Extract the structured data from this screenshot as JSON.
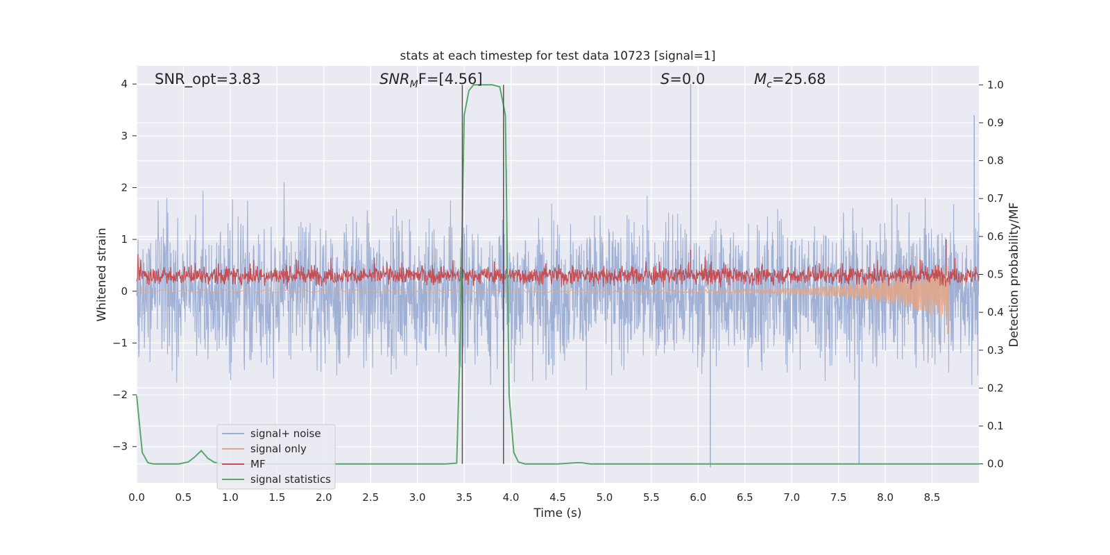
{
  "chart_data": {
    "type": "line",
    "title": "stats at each timestep for test data 10723 [signal=1]",
    "xlabel": "Time (s)",
    "ylabel": "Whitened strain",
    "ylabel_right": "Detection probability/MF",
    "xlim": [
      0.0,
      9.0
    ],
    "ylim": [
      -3.7,
      4.35
    ],
    "ylim_right": [
      -0.05,
      1.05
    ],
    "xticks": [
      "0.0",
      "0.5",
      "1.0",
      "1.5",
      "2.0",
      "2.5",
      "3.0",
      "3.5",
      "4.0",
      "4.5",
      "5.0",
      "5.5",
      "6.0",
      "6.5",
      "7.0",
      "7.5",
      "8.0",
      "8.5"
    ],
    "xtick_values": [
      0.0,
      0.5,
      1.0,
      1.5,
      2.0,
      2.5,
      3.0,
      3.5,
      4.0,
      4.5,
      5.0,
      5.5,
      6.0,
      6.5,
      7.0,
      7.5,
      8.0,
      8.5
    ],
    "yticks_left": [
      "−3",
      "−2",
      "−1",
      "0",
      "1",
      "2",
      "3",
      "4"
    ],
    "ytick_values_left": [
      -3,
      -2,
      -1,
      0,
      1,
      2,
      3,
      4
    ],
    "yticks_right": [
      "0.0",
      "0.1",
      "0.2",
      "0.3",
      "0.4",
      "0.5",
      "0.6",
      "0.7",
      "0.8",
      "0.9",
      "1.0"
    ],
    "ytick_values_right": [
      0.0,
      0.1,
      0.2,
      0.3,
      0.4,
      0.5,
      0.6,
      0.7,
      0.8,
      0.9,
      1.0
    ],
    "grid": true,
    "legend_position": "lower-left",
    "series": [
      {
        "name": "signal+ noise",
        "axis": "left",
        "color": "#9badd2",
        "style": "dense noise",
        "approx_envelope": [
          -3.4,
          4.0
        ],
        "typical_band": [
          -1.2,
          1.4
        ],
        "notable_peaks": [
          {
            "x": 5.92,
            "y": 4.0
          },
          {
            "x": 8.95,
            "y": 3.4
          },
          {
            "x": 6.13,
            "y": -3.4
          },
          {
            "x": 7.72,
            "y": -3.35
          }
        ]
      },
      {
        "name": "signal only",
        "axis": "left",
        "color": "#e1a68a",
        "style": "chirp",
        "amplitude_start": 0.02,
        "peak": {
          "x": 8.67,
          "y": -0.83
        },
        "end_time": 8.68
      },
      {
        "name": "MF",
        "axis": "left",
        "color": "#c44e52",
        "style": "noisy band",
        "band": [
          0.05,
          0.55
        ],
        "notable_peaks": [
          {
            "x": 8.65,
            "y": 1.0
          },
          {
            "x": 5.92,
            "y": 0.8
          },
          {
            "x": 3.92,
            "y": 0.78
          }
        ]
      },
      {
        "name": "signal statistics",
        "axis": "right",
        "color": "#55a868",
        "style": "line",
        "x": [
          0.0,
          0.06,
          0.12,
          0.18,
          0.3,
          0.45,
          0.55,
          0.62,
          0.69,
          0.76,
          0.83,
          0.95,
          1.5,
          2.0,
          2.5,
          3.0,
          3.3,
          3.42,
          3.46,
          3.5,
          3.55,
          3.6,
          3.7,
          3.8,
          3.88,
          3.94,
          3.98,
          4.03,
          4.08,
          4.15,
          4.3,
          4.5,
          4.7,
          4.75,
          4.85,
          5.0,
          6.0,
          7.0,
          8.0,
          9.0
        ],
        "y": [
          0.18,
          0.03,
          0.003,
          0.0,
          0.0,
          0.0,
          0.005,
          0.018,
          0.035,
          0.015,
          0.004,
          0.0,
          0.0,
          0.0,
          0.0,
          0.0,
          0.0,
          0.002,
          0.35,
          0.92,
          0.985,
          1.0,
          1.0,
          1.0,
          0.995,
          0.92,
          0.18,
          0.03,
          0.005,
          0.0,
          0.0,
          0.0,
          0.003,
          0.003,
          0.0,
          0.0,
          0.0,
          0.0,
          0.0,
          0.0
        ]
      }
    ],
    "vertical_lines": [
      3.48,
      3.92
    ],
    "annotations": [
      {
        "text_main": "SNR_opt=3.83",
        "x": 0.2
      },
      {
        "text_main": "SNR",
        "text_sub": "M",
        "text_after": "F=[4.56]",
        "x": 2.6
      },
      {
        "text_main": "S",
        "text_after": "=0.0",
        "x": 5.6
      },
      {
        "text_main": "M",
        "text_sub": "c",
        "text_after": "=25.68",
        "x": 6.6
      }
    ]
  },
  "colors": {
    "background": "#eaeaf2",
    "grid": "#ffffff",
    "text": "#262626",
    "vline": "#555555"
  }
}
